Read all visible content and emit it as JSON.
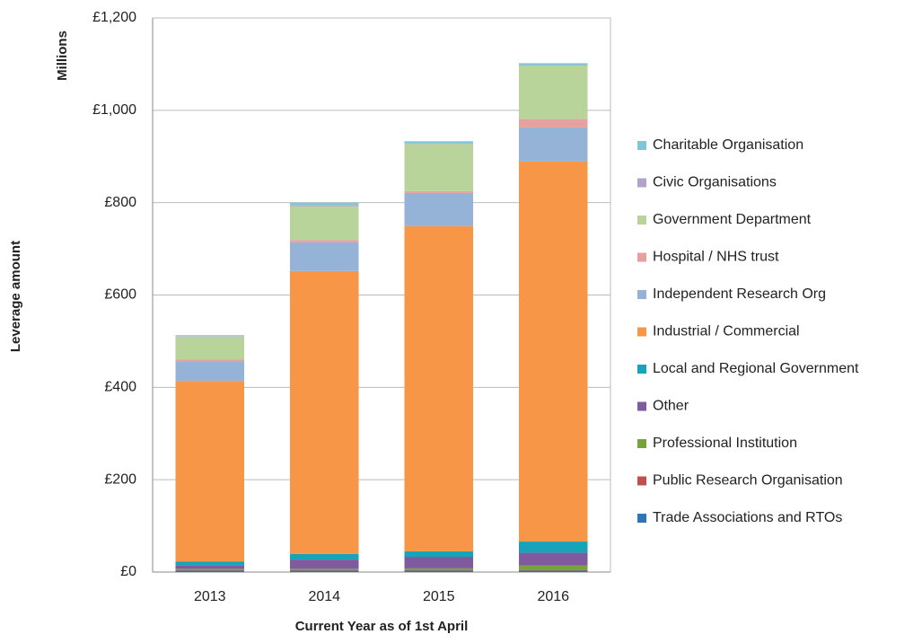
{
  "chart_data": {
    "type": "stacked-bar",
    "y_axis_title": "Leverage amount",
    "y_axis_unit": "Millions",
    "x_axis_title": "Current Year as of 1st April",
    "categories": [
      "2013",
      "2014",
      "2015",
      "2016"
    ],
    "ylim": [
      0,
      1200
    ],
    "yticks": [
      {
        "value": 0,
        "label": "£0"
      },
      {
        "value": 200,
        "label": "£200"
      },
      {
        "value": 400,
        "label": "£400"
      },
      {
        "value": 600,
        "label": "£600"
      },
      {
        "value": 800,
        "label": "£800"
      },
      {
        "value": 1000,
        "label": "£1,000"
      },
      {
        "value": 1200,
        "label": "£1,200"
      }
    ],
    "grid": true,
    "legend_position": "right",
    "series": [
      {
        "name": "Trade Associations and RTOs",
        "color": "#2e75b6",
        "values": [
          3,
          3,
          3,
          3
        ]
      },
      {
        "name": "Public Research Organisation",
        "color": "#c0504d",
        "values": [
          1,
          1,
          1,
          1
        ]
      },
      {
        "name": "Professional Institution",
        "color": "#77a33b",
        "values": [
          3,
          3,
          4,
          10
        ]
      },
      {
        "name": "Other",
        "color": "#7f5a9e",
        "values": [
          8,
          20,
          25,
          28
        ]
      },
      {
        "name": "Local and Regional Government",
        "color": "#17a3b8",
        "values": [
          8,
          12,
          12,
          24
        ]
      },
      {
        "name": "Industrial / Commercial",
        "color": "#f79646",
        "values": [
          391,
          613,
          704,
          823
        ]
      },
      {
        "name": "Independent Research Org",
        "color": "#95b3d7",
        "values": [
          41,
          62,
          72,
          74
        ]
      },
      {
        "name": "Hospital / NHS trust",
        "color": "#e6a0a0",
        "values": [
          5,
          5,
          4,
          18
        ]
      },
      {
        "name": "Government Department",
        "color": "#b8d49a",
        "values": [
          50,
          73,
          102,
          116
        ]
      },
      {
        "name": "Civic Organisations",
        "color": "#b3a2c7",
        "values": [
          1,
          2,
          1,
          1
        ]
      },
      {
        "name": "Charitable Organisation",
        "color": "#7fc6d9",
        "values": [
          2,
          6,
          5,
          4
        ]
      }
    ]
  }
}
